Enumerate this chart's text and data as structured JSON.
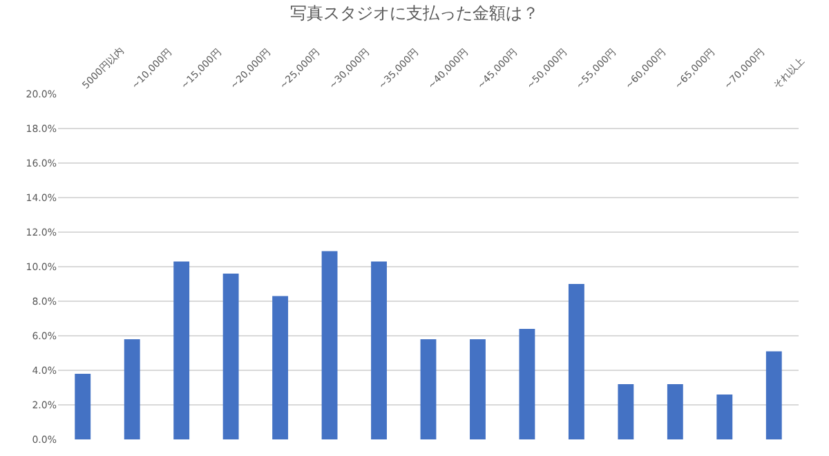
{
  "chart_data": {
    "type": "bar",
    "title": "写真スタジオに支払った金額は？",
    "categories": [
      "5000円以内",
      "~10,000円",
      "~15,000円",
      "~20,000円",
      "~25,000円",
      "~30,000円",
      "~35,000円",
      "~40,000円",
      "~45,000円",
      "~50,000円",
      "~55,000円",
      "~60,000円",
      "~65,000円",
      "~70,000円",
      "それ以上"
    ],
    "values": [
      3.8,
      5.8,
      10.3,
      9.6,
      8.3,
      10.9,
      10.3,
      5.8,
      5.8,
      6.4,
      9.0,
      3.2,
      3.2,
      2.6,
      5.1
    ],
    "color": "#4472c4",
    "ylim": [
      0,
      20
    ],
    "yticks": [
      {
        "value": 0,
        "label": "0.0%"
      },
      {
        "value": 2,
        "label": "2.0%"
      },
      {
        "value": 4,
        "label": "4.0%"
      },
      {
        "value": 6,
        "label": "6.0%"
      },
      {
        "value": 8,
        "label": "8.0%"
      },
      {
        "value": 10,
        "label": "10.0%"
      },
      {
        "value": 12,
        "label": "12.0%"
      },
      {
        "value": 14,
        "label": "14.0%"
      },
      {
        "value": 16,
        "label": "16.0%"
      },
      {
        "value": 18,
        "label": "18.0%"
      },
      {
        "value": 20,
        "label": "20.0%"
      }
    ],
    "grid": "y"
  }
}
